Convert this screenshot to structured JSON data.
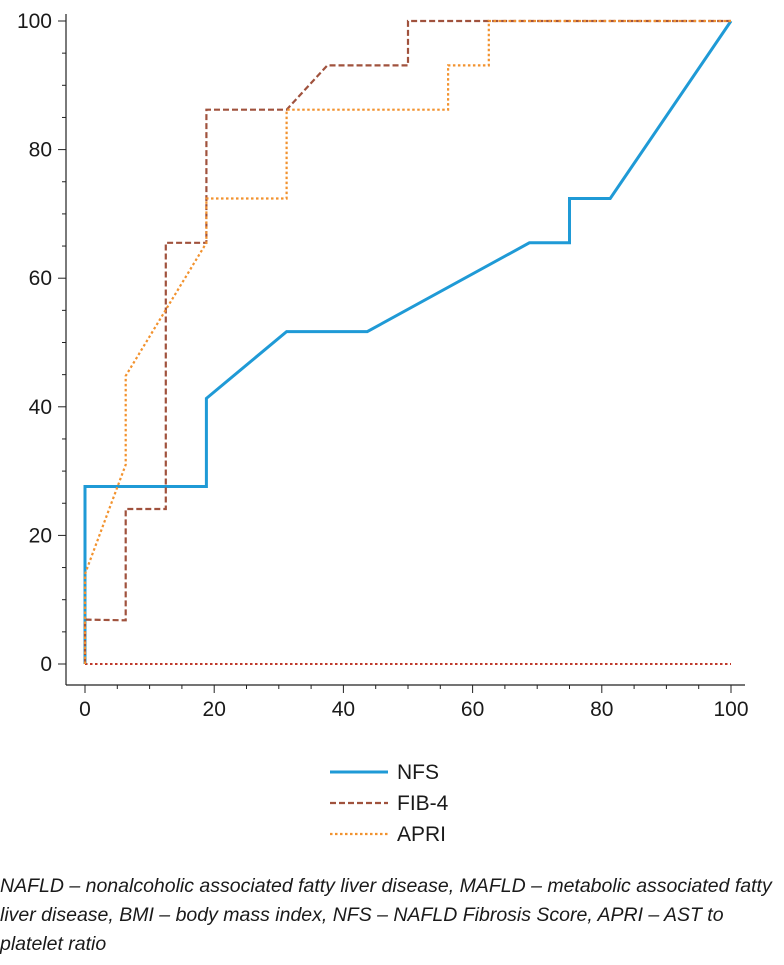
{
  "chart_data": {
    "type": "line",
    "title": "",
    "xlabel": "",
    "ylabel": "",
    "xlim": [
      0,
      100
    ],
    "ylim": [
      0,
      100
    ],
    "x_ticks": [
      0,
      20,
      40,
      60,
      80,
      100
    ],
    "y_ticks": [
      0,
      20,
      40,
      60,
      80,
      100
    ],
    "grid": false,
    "legend_position": "bottom-center",
    "series": [
      {
        "name": "NFS",
        "color": "#1f9ad6",
        "style": "solid",
        "points": [
          [
            0,
            0
          ],
          [
            0,
            27.6
          ],
          [
            18.8,
            27.6
          ],
          [
            18.8,
            41.3
          ],
          [
            31.2,
            51.7
          ],
          [
            43.7,
            51.7
          ],
          [
            68.8,
            65.5
          ],
          [
            75,
            65.5
          ],
          [
            75,
            72.4
          ],
          [
            81.3,
            72.4
          ],
          [
            100,
            100
          ]
        ]
      },
      {
        "name": "FIB-4",
        "color": "#a0523d",
        "style": "dashed",
        "points": [
          [
            0,
            0
          ],
          [
            0,
            6.9
          ],
          [
            6.3,
            6.8
          ],
          [
            6.3,
            24.1
          ],
          [
            12.5,
            24.1
          ],
          [
            12.5,
            65.5
          ],
          [
            18.8,
            65.5
          ],
          [
            18.8,
            86.2
          ],
          [
            31.2,
            86.2
          ],
          [
            37.5,
            93.1
          ],
          [
            50,
            93.1
          ],
          [
            50,
            100
          ],
          [
            100,
            100
          ]
        ]
      },
      {
        "name": "APRI",
        "color": "#f2922e",
        "style": "dotted",
        "points": [
          [
            0,
            0
          ],
          [
            0,
            14
          ],
          [
            6.3,
            31
          ],
          [
            6.3,
            44.8
          ],
          [
            18.8,
            65.5
          ],
          [
            18.8,
            72.4
          ],
          [
            31.2,
            72.4
          ],
          [
            31.2,
            86.2
          ],
          [
            56.2,
            86.2
          ],
          [
            56.2,
            93.1
          ],
          [
            62.5,
            93.1
          ],
          [
            62.5,
            100
          ],
          [
            100,
            100
          ]
        ]
      }
    ],
    "reference_line": {
      "color": "#c0392b",
      "style": "dotted",
      "points": [
        [
          0,
          0
        ],
        [
          100,
          0
        ]
      ]
    }
  },
  "caption": "NAFLD – nonalcoholic associated fatty liver disease, MAFLD – metabolic associated fatty liver disease, BMI – body mass index, NFS – NAFLD Fibrosis Score, APRI – AST to platelet ratio"
}
